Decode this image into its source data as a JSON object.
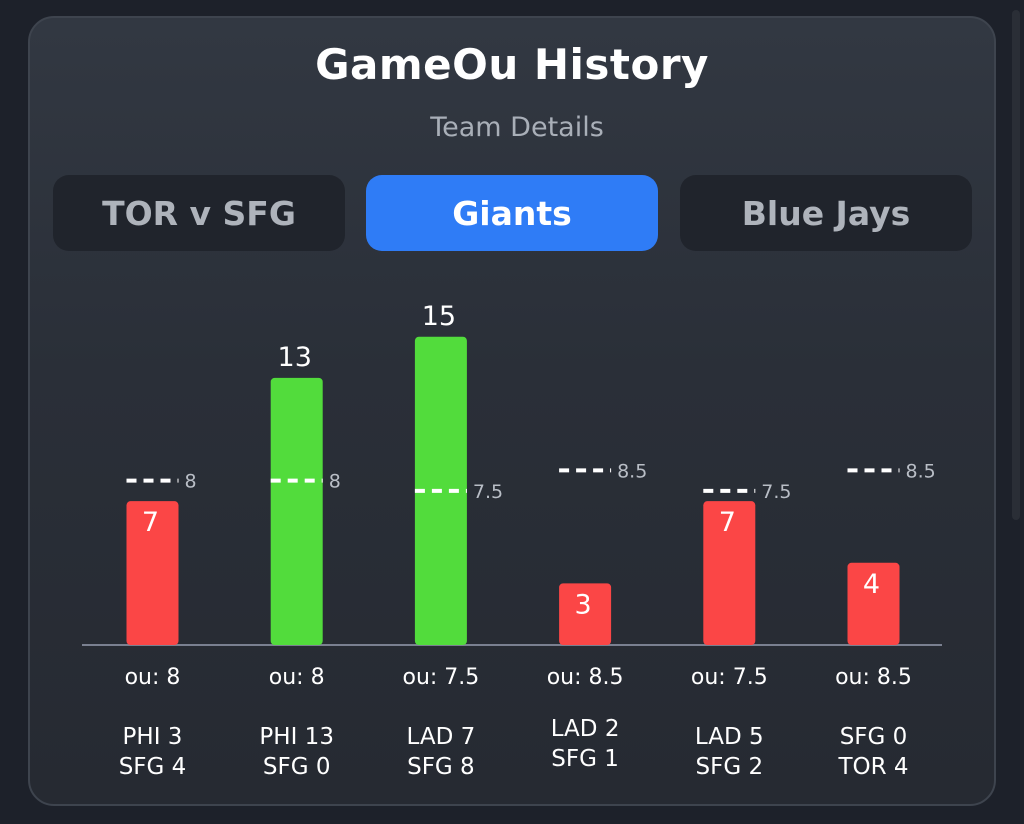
{
  "header": {
    "title": "GameOu History",
    "subtitle": "Team Details"
  },
  "tabs": [
    {
      "label": "TOR v SFG",
      "active": false
    },
    {
      "label": "Giants",
      "active": true
    },
    {
      "label": "Blue Jays",
      "active": false
    }
  ],
  "colors": {
    "over": "#52dc3c",
    "under": "#fb4646",
    "active_tab": "#2f7cf6"
  },
  "chart_data": {
    "type": "bar",
    "ylim": [
      0,
      21
    ],
    "grid": false,
    "games": [
      {
        "total": 7,
        "ou": 8,
        "ou_label": "ou: 8",
        "result": "under",
        "score": [
          "PHI 3",
          "SFG 4"
        ]
      },
      {
        "total": 13,
        "ou": 8,
        "ou_label": "ou: 8",
        "result": "over",
        "score": [
          "PHI 13",
          "SFG 0"
        ]
      },
      {
        "total": 15,
        "ou": 7.5,
        "ou_label": "ou: 7.5",
        "result": "over",
        "score": [
          "LAD 7",
          "SFG 8"
        ]
      },
      {
        "total": 3,
        "ou": 8.5,
        "ou_label": "ou: 8.5",
        "result": "under",
        "score": [
          "LAD 2",
          "SFG 1"
        ]
      },
      {
        "total": 7,
        "ou": 7.5,
        "ou_label": "ou: 7.5",
        "result": "under",
        "score": [
          "LAD 5",
          "SFG 2"
        ]
      },
      {
        "total": 4,
        "ou": 8.5,
        "ou_label": "ou: 8.5",
        "result": "under",
        "score": [
          "SFG 0",
          "TOR 4"
        ]
      }
    ]
  }
}
